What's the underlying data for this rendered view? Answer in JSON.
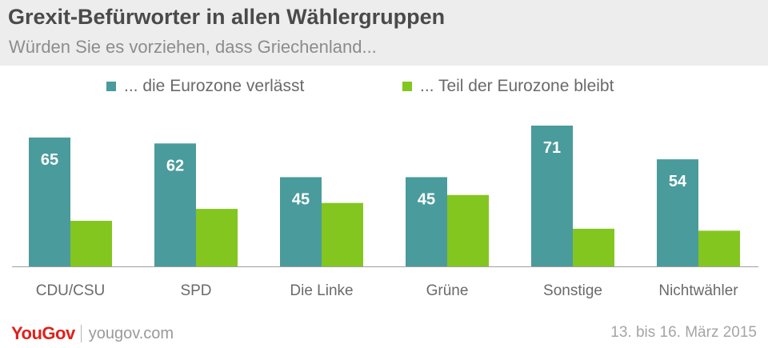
{
  "header": {
    "title": "Grexit-Befürworter in allen Wählergruppen",
    "subtitle": "Würden Sie es vorziehen, dass Griechenland..."
  },
  "colors": {
    "series_1": "#4a9b9c",
    "series_2": "#83c61f",
    "header_bg": "#ededed",
    "brand": "#e0201b"
  },
  "chart_data": {
    "type": "bar",
    "title": "Grexit-Befürworter in allen Wählergruppen",
    "subtitle": "Würden Sie es vorziehen, dass Griechenland...",
    "categories": [
      "CDU/CSU",
      "SPD",
      "Die Linke",
      "Grüne",
      "Sonstige",
      "Nichtwähler"
    ],
    "series": [
      {
        "name": "... die Eurozone verlässt",
        "values": [
          65,
          62,
          45,
          45,
          71,
          54
        ]
      },
      {
        "name": "... Teil der Eurozone bleibt",
        "values": [
          23,
          29,
          32,
          36,
          19,
          18
        ]
      }
    ],
    "xlabel": "",
    "ylabel": "",
    "ylim": [
      0,
      71
    ],
    "grid": false,
    "legend": "top"
  },
  "footer": {
    "brand": "YouGov",
    "url": "yougov.com",
    "date": "13. bis 16. März 2015"
  }
}
